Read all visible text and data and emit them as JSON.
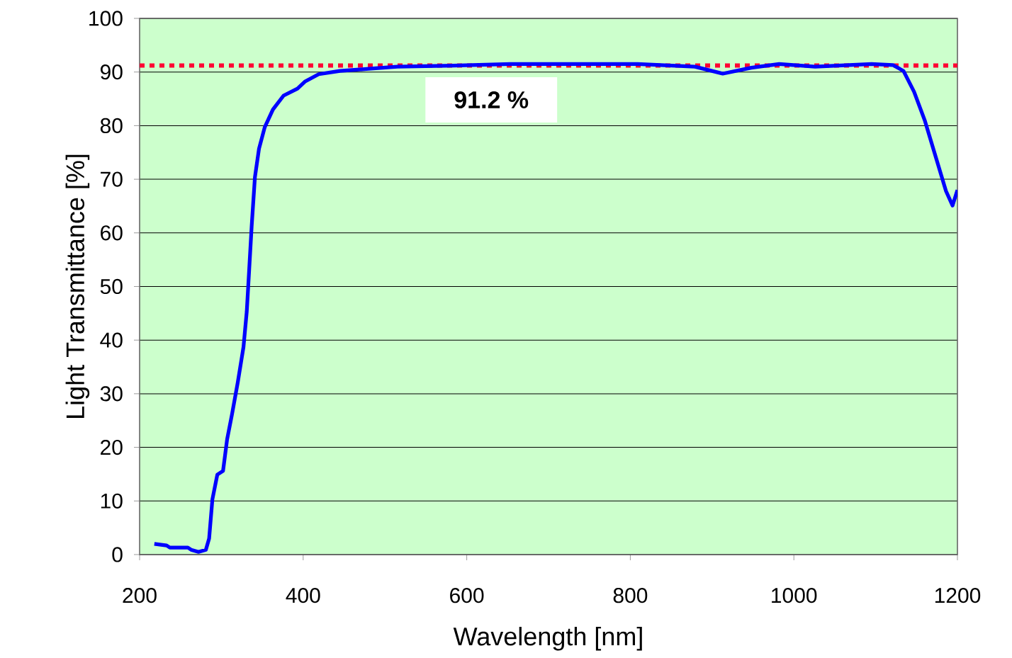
{
  "chart_data": {
    "type": "line",
    "xlabel": "Wavelength [nm]",
    "ylabel": "Light Transmittance [%]",
    "xlim": [
      200,
      1200
    ],
    "ylim": [
      0,
      100
    ],
    "xticks": [
      200,
      400,
      600,
      800,
      1000,
      1200
    ],
    "yticks": [
      0,
      10,
      20,
      30,
      40,
      50,
      60,
      70,
      80,
      90,
      100
    ],
    "grid": "y",
    "marker": "none",
    "line_style": "solid",
    "series": [
      {
        "color": "#0000ff",
        "x": [
          218,
          233,
          237,
          259,
          263,
          272,
          281,
          285,
          289,
          295,
          302,
          307,
          313,
          320,
          327,
          331,
          334,
          337,
          341,
          346,
          353,
          363,
          376,
          393,
          402,
          419,
          445,
          480,
          515,
          584,
          653,
          731,
          809,
          879,
          913,
          948,
          982,
          1026,
          1095,
          1121,
          1134,
          1147,
          1160,
          1173,
          1186,
          1194,
          1200
        ],
        "values": [
          2.0,
          1.7,
          1.3,
          1.3,
          0.9,
          0.5,
          0.9,
          3.0,
          10.3,
          14.9,
          15.6,
          21.5,
          26.2,
          32.1,
          38.7,
          45.3,
          53.2,
          61.2,
          70.4,
          75.7,
          79.7,
          83.0,
          85.6,
          86.9,
          88.2,
          89.6,
          90.2,
          90.6,
          91.0,
          91.2,
          91.5,
          91.5,
          91.5,
          91.0,
          89.7,
          90.8,
          91.5,
          91.0,
          91.5,
          91.3,
          90.2,
          86.3,
          81.0,
          74.4,
          67.8,
          65.1,
          68.0
        ]
      }
    ],
    "ref_lines": [
      {
        "axis": "y",
        "value": 91.2,
        "label": "91.2 %",
        "color": "#ff0033",
        "line_style": "dotted"
      }
    ]
  }
}
